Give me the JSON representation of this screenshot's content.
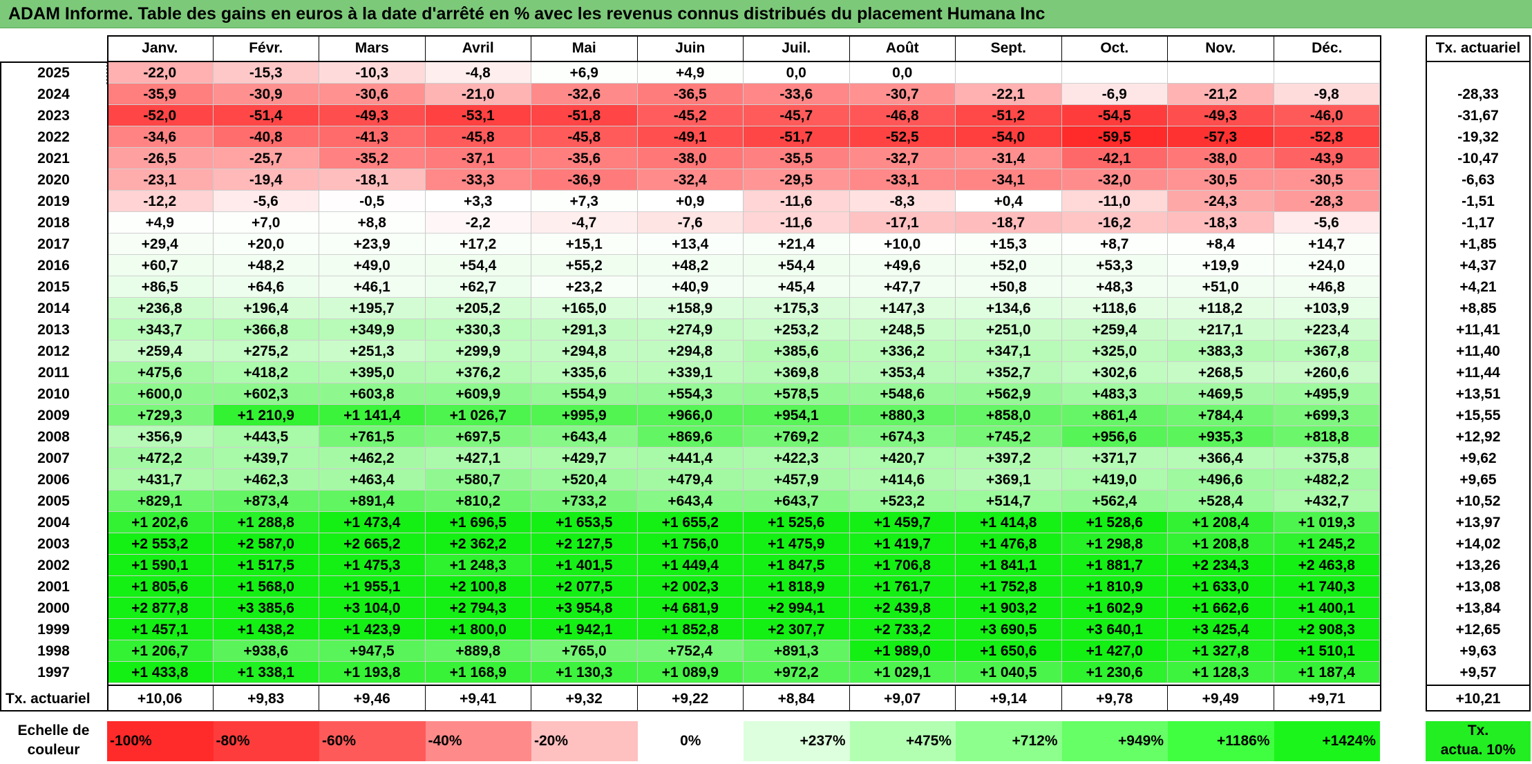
{
  "title": "ADAM Informe. Table des gains en euros à la date d'arrêté en % avec les revenus connus distribués du placement Humana Inc",
  "months": [
    "Janv.",
    "Févr.",
    "Mars",
    "Avril",
    "Mai",
    "Juin",
    "Juil.",
    "Août",
    "Sept.",
    "Oct.",
    "Nov.",
    "Déc."
  ],
  "rate_header": "Tx. actuariel",
  "rows": [
    {
      "year": "2025",
      "values": [
        "-22,0",
        "-15,3",
        "-10,3",
        "-4,8",
        "+6,9",
        "+4,9",
        "0,0",
        "0,0",
        "",
        "",
        "",
        ""
      ],
      "rate": ""
    },
    {
      "year": "2024",
      "values": [
        "-35,9",
        "-30,9",
        "-30,6",
        "-21,0",
        "-32,6",
        "-36,5",
        "-33,6",
        "-30,7",
        "-22,1",
        "-6,9",
        "-21,2",
        "-9,8"
      ],
      "rate": "-28,33"
    },
    {
      "year": "2023",
      "values": [
        "-52,0",
        "-51,4",
        "-49,3",
        "-53,1",
        "-51,8",
        "-45,2",
        "-45,7",
        "-46,8",
        "-51,2",
        "-54,5",
        "-49,3",
        "-46,0"
      ],
      "rate": "-31,67"
    },
    {
      "year": "2022",
      "values": [
        "-34,6",
        "-40,8",
        "-41,3",
        "-45,8",
        "-45,8",
        "-49,1",
        "-51,7",
        "-52,5",
        "-54,0",
        "-59,5",
        "-57,3",
        "-52,8"
      ],
      "rate": "-19,32"
    },
    {
      "year": "2021",
      "values": [
        "-26,5",
        "-25,7",
        "-35,2",
        "-37,1",
        "-35,6",
        "-38,0",
        "-35,5",
        "-32,7",
        "-31,4",
        "-42,1",
        "-38,0",
        "-43,9"
      ],
      "rate": "-10,47"
    },
    {
      "year": "2020",
      "values": [
        "-23,1",
        "-19,4",
        "-18,1",
        "-33,3",
        "-36,9",
        "-32,4",
        "-29,5",
        "-33,1",
        "-34,1",
        "-32,0",
        "-30,5",
        "-30,5"
      ],
      "rate": "-6,63"
    },
    {
      "year": "2019",
      "values": [
        "-12,2",
        "-5,6",
        "-0,5",
        "+3,3",
        "+7,3",
        "+0,9",
        "-11,6",
        "-8,3",
        "+0,4",
        "-11,0",
        "-24,3",
        "-28,3"
      ],
      "rate": "-1,51"
    },
    {
      "year": "2018",
      "values": [
        "+4,9",
        "+7,0",
        "+8,8",
        "-2,2",
        "-4,7",
        "-7,6",
        "-11,6",
        "-17,1",
        "-18,7",
        "-16,2",
        "-18,3",
        "-5,6"
      ],
      "rate": "-1,17"
    },
    {
      "year": "2017",
      "values": [
        "+29,4",
        "+20,0",
        "+23,9",
        "+17,2",
        "+15,1",
        "+13,4",
        "+21,4",
        "+10,0",
        "+15,3",
        "+8,7",
        "+8,4",
        "+14,7"
      ],
      "rate": "+1,85"
    },
    {
      "year": "2016",
      "values": [
        "+60,7",
        "+48,2",
        "+49,0",
        "+54,4",
        "+55,2",
        "+48,2",
        "+54,4",
        "+49,6",
        "+52,0",
        "+53,3",
        "+19,9",
        "+24,0"
      ],
      "rate": "+4,37"
    },
    {
      "year": "2015",
      "values": [
        "+86,5",
        "+64,6",
        "+46,1",
        "+62,7",
        "+23,2",
        "+40,9",
        "+45,4",
        "+47,7",
        "+50,8",
        "+48,3",
        "+51,0",
        "+46,8"
      ],
      "rate": "+4,21"
    },
    {
      "year": "2014",
      "values": [
        "+236,8",
        "+196,4",
        "+195,7",
        "+205,2",
        "+165,0",
        "+158,9",
        "+175,3",
        "+147,3",
        "+134,6",
        "+118,6",
        "+118,2",
        "+103,9"
      ],
      "rate": "+8,85"
    },
    {
      "year": "2013",
      "values": [
        "+343,7",
        "+366,8",
        "+349,9",
        "+330,3",
        "+291,3",
        "+274,9",
        "+253,2",
        "+248,5",
        "+251,0",
        "+259,4",
        "+217,1",
        "+223,4"
      ],
      "rate": "+11,41"
    },
    {
      "year": "2012",
      "values": [
        "+259,4",
        "+275,2",
        "+251,3",
        "+299,9",
        "+294,8",
        "+294,8",
        "+385,6",
        "+336,2",
        "+347,1",
        "+325,0",
        "+383,3",
        "+367,8"
      ],
      "rate": "+11,40"
    },
    {
      "year": "2011",
      "values": [
        "+475,6",
        "+418,2",
        "+395,0",
        "+376,2",
        "+335,6",
        "+339,1",
        "+369,8",
        "+353,4",
        "+352,7",
        "+302,6",
        "+268,5",
        "+260,6"
      ],
      "rate": "+11,44"
    },
    {
      "year": "2010",
      "values": [
        "+600,0",
        "+602,3",
        "+603,8",
        "+609,9",
        "+554,9",
        "+554,3",
        "+578,5",
        "+548,6",
        "+562,9",
        "+483,3",
        "+469,5",
        "+495,9"
      ],
      "rate": "+13,51"
    },
    {
      "year": "2009",
      "values": [
        "+729,3",
        "+1 210,9",
        "+1 141,4",
        "+1 026,7",
        "+995,9",
        "+966,0",
        "+954,1",
        "+880,3",
        "+858,0",
        "+861,4",
        "+784,4",
        "+699,3"
      ],
      "rate": "+15,55"
    },
    {
      "year": "2008",
      "values": [
        "+356,9",
        "+443,5",
        "+761,5",
        "+697,5",
        "+643,4",
        "+869,6",
        "+769,2",
        "+674,3",
        "+745,2",
        "+956,6",
        "+935,3",
        "+818,8"
      ],
      "rate": "+12,92"
    },
    {
      "year": "2007",
      "values": [
        "+472,2",
        "+439,7",
        "+462,2",
        "+427,1",
        "+429,7",
        "+441,4",
        "+422,3",
        "+420,7",
        "+397,2",
        "+371,7",
        "+366,4",
        "+375,8"
      ],
      "rate": "+9,62"
    },
    {
      "year": "2006",
      "values": [
        "+431,7",
        "+462,3",
        "+463,4",
        "+580,7",
        "+520,4",
        "+479,4",
        "+457,9",
        "+414,6",
        "+369,1",
        "+419,0",
        "+496,6",
        "+482,2"
      ],
      "rate": "+9,65"
    },
    {
      "year": "2005",
      "values": [
        "+829,1",
        "+873,4",
        "+891,4",
        "+810,2",
        "+733,2",
        "+643,4",
        "+643,7",
        "+523,2",
        "+514,7",
        "+562,4",
        "+528,4",
        "+432,7"
      ],
      "rate": "+10,52"
    },
    {
      "year": "2004",
      "values": [
        "+1 202,6",
        "+1 288,8",
        "+1 473,4",
        "+1 696,5",
        "+1 653,5",
        "+1 655,2",
        "+1 525,6",
        "+1 459,7",
        "+1 414,8",
        "+1 528,6",
        "+1 208,4",
        "+1 019,3"
      ],
      "rate": "+13,97"
    },
    {
      "year": "2003",
      "values": [
        "+2 553,2",
        "+2 587,0",
        "+2 665,2",
        "+2 362,2",
        "+2 127,5",
        "+1 756,0",
        "+1 475,9",
        "+1 419,7",
        "+1 476,8",
        "+1 298,8",
        "+1 208,8",
        "+1 245,2"
      ],
      "rate": "+14,02"
    },
    {
      "year": "2002",
      "values": [
        "+1 590,1",
        "+1 517,5",
        "+1 475,3",
        "+1 248,3",
        "+1 401,5",
        "+1 449,4",
        "+1 847,5",
        "+1 706,8",
        "+1 841,1",
        "+1 881,7",
        "+2 234,3",
        "+2 463,8"
      ],
      "rate": "+13,26"
    },
    {
      "year": "2001",
      "values": [
        "+1 805,6",
        "+1 568,0",
        "+1 955,1",
        "+2 100,8",
        "+2 077,5",
        "+2 002,3",
        "+1 818,9",
        "+1 761,7",
        "+1 752,8",
        "+1 810,9",
        "+1 633,0",
        "+1 740,3"
      ],
      "rate": "+13,08"
    },
    {
      "year": "2000",
      "values": [
        "+2 877,8",
        "+3 385,6",
        "+3 104,0",
        "+2 794,3",
        "+3 954,8",
        "+4 681,9",
        "+2 994,1",
        "+2 439,8",
        "+1 903,2",
        "+1 602,9",
        "+1 662,6",
        "+1 400,1"
      ],
      "rate": "+13,84"
    },
    {
      "year": "1999",
      "values": [
        "+1 457,1",
        "+1 438,2",
        "+1 423,9",
        "+1 800,0",
        "+1 942,1",
        "+1 852,8",
        "+2 307,7",
        "+2 733,2",
        "+3 690,5",
        "+3 640,1",
        "+3 425,4",
        "+2 908,3"
      ],
      "rate": "+12,65"
    },
    {
      "year": "1998",
      "values": [
        "+1 206,7",
        "+938,6",
        "+947,5",
        "+889,8",
        "+765,0",
        "+752,4",
        "+891,3",
        "+1 989,0",
        "+1 650,6",
        "+1 427,0",
        "+1 327,8",
        "+1 510,1"
      ],
      "rate": "+9,63"
    },
    {
      "year": "1997",
      "values": [
        "+1 433,8",
        "+1 338,1",
        "+1 193,8",
        "+1 168,9",
        "+1 130,3",
        "+1 089,9",
        "+972,2",
        "+1 029,1",
        "+1 040,5",
        "+1 230,6",
        "+1 128,3",
        "+1 187,4"
      ],
      "rate": "+9,57"
    }
  ],
  "footer": {
    "label": "Tx. actuariel",
    "values": [
      "+10,06",
      "+9,83",
      "+9,46",
      "+9,41",
      "+9,32",
      "+9,22",
      "+8,84",
      "+9,07",
      "+9,14",
      "+9,78",
      "+9,49",
      "+9,71"
    ],
    "total": "+10,21"
  },
  "scale": {
    "label_line1": "Echelle de",
    "label_line2": "couleur",
    "steps": [
      {
        "text": "-100%",
        "color": "#ff2a2a",
        "align": "left"
      },
      {
        "text": "-80%",
        "color": "#ff3c3c",
        "align": "left"
      },
      {
        "text": "-60%",
        "color": "#ff5a5a",
        "align": "left"
      },
      {
        "text": "-40%",
        "color": "#ff8a8a",
        "align": "left"
      },
      {
        "text": "-20%",
        "color": "#ffc0c0",
        "align": "left"
      },
      {
        "text": "0%",
        "color": "#ffffff",
        "align": "center"
      },
      {
        "text": "+237%",
        "color": "#ddffdd",
        "align": "right"
      },
      {
        "text": "+475%",
        "color": "#b2ffb2",
        "align": "right"
      },
      {
        "text": "+712%",
        "color": "#8dff8d",
        "align": "right"
      },
      {
        "text": "+949%",
        "color": "#66ff66",
        "align": "right"
      },
      {
        "text": "+1186%",
        "color": "#40ff40",
        "align": "right"
      },
      {
        "text": "+1424%",
        "color": "#1cf51c",
        "align": "right"
      }
    ],
    "rate_label_line1": "Tx.",
    "rate_label_line2": "actua. 10%",
    "rate_color": "#22ee22"
  }
}
